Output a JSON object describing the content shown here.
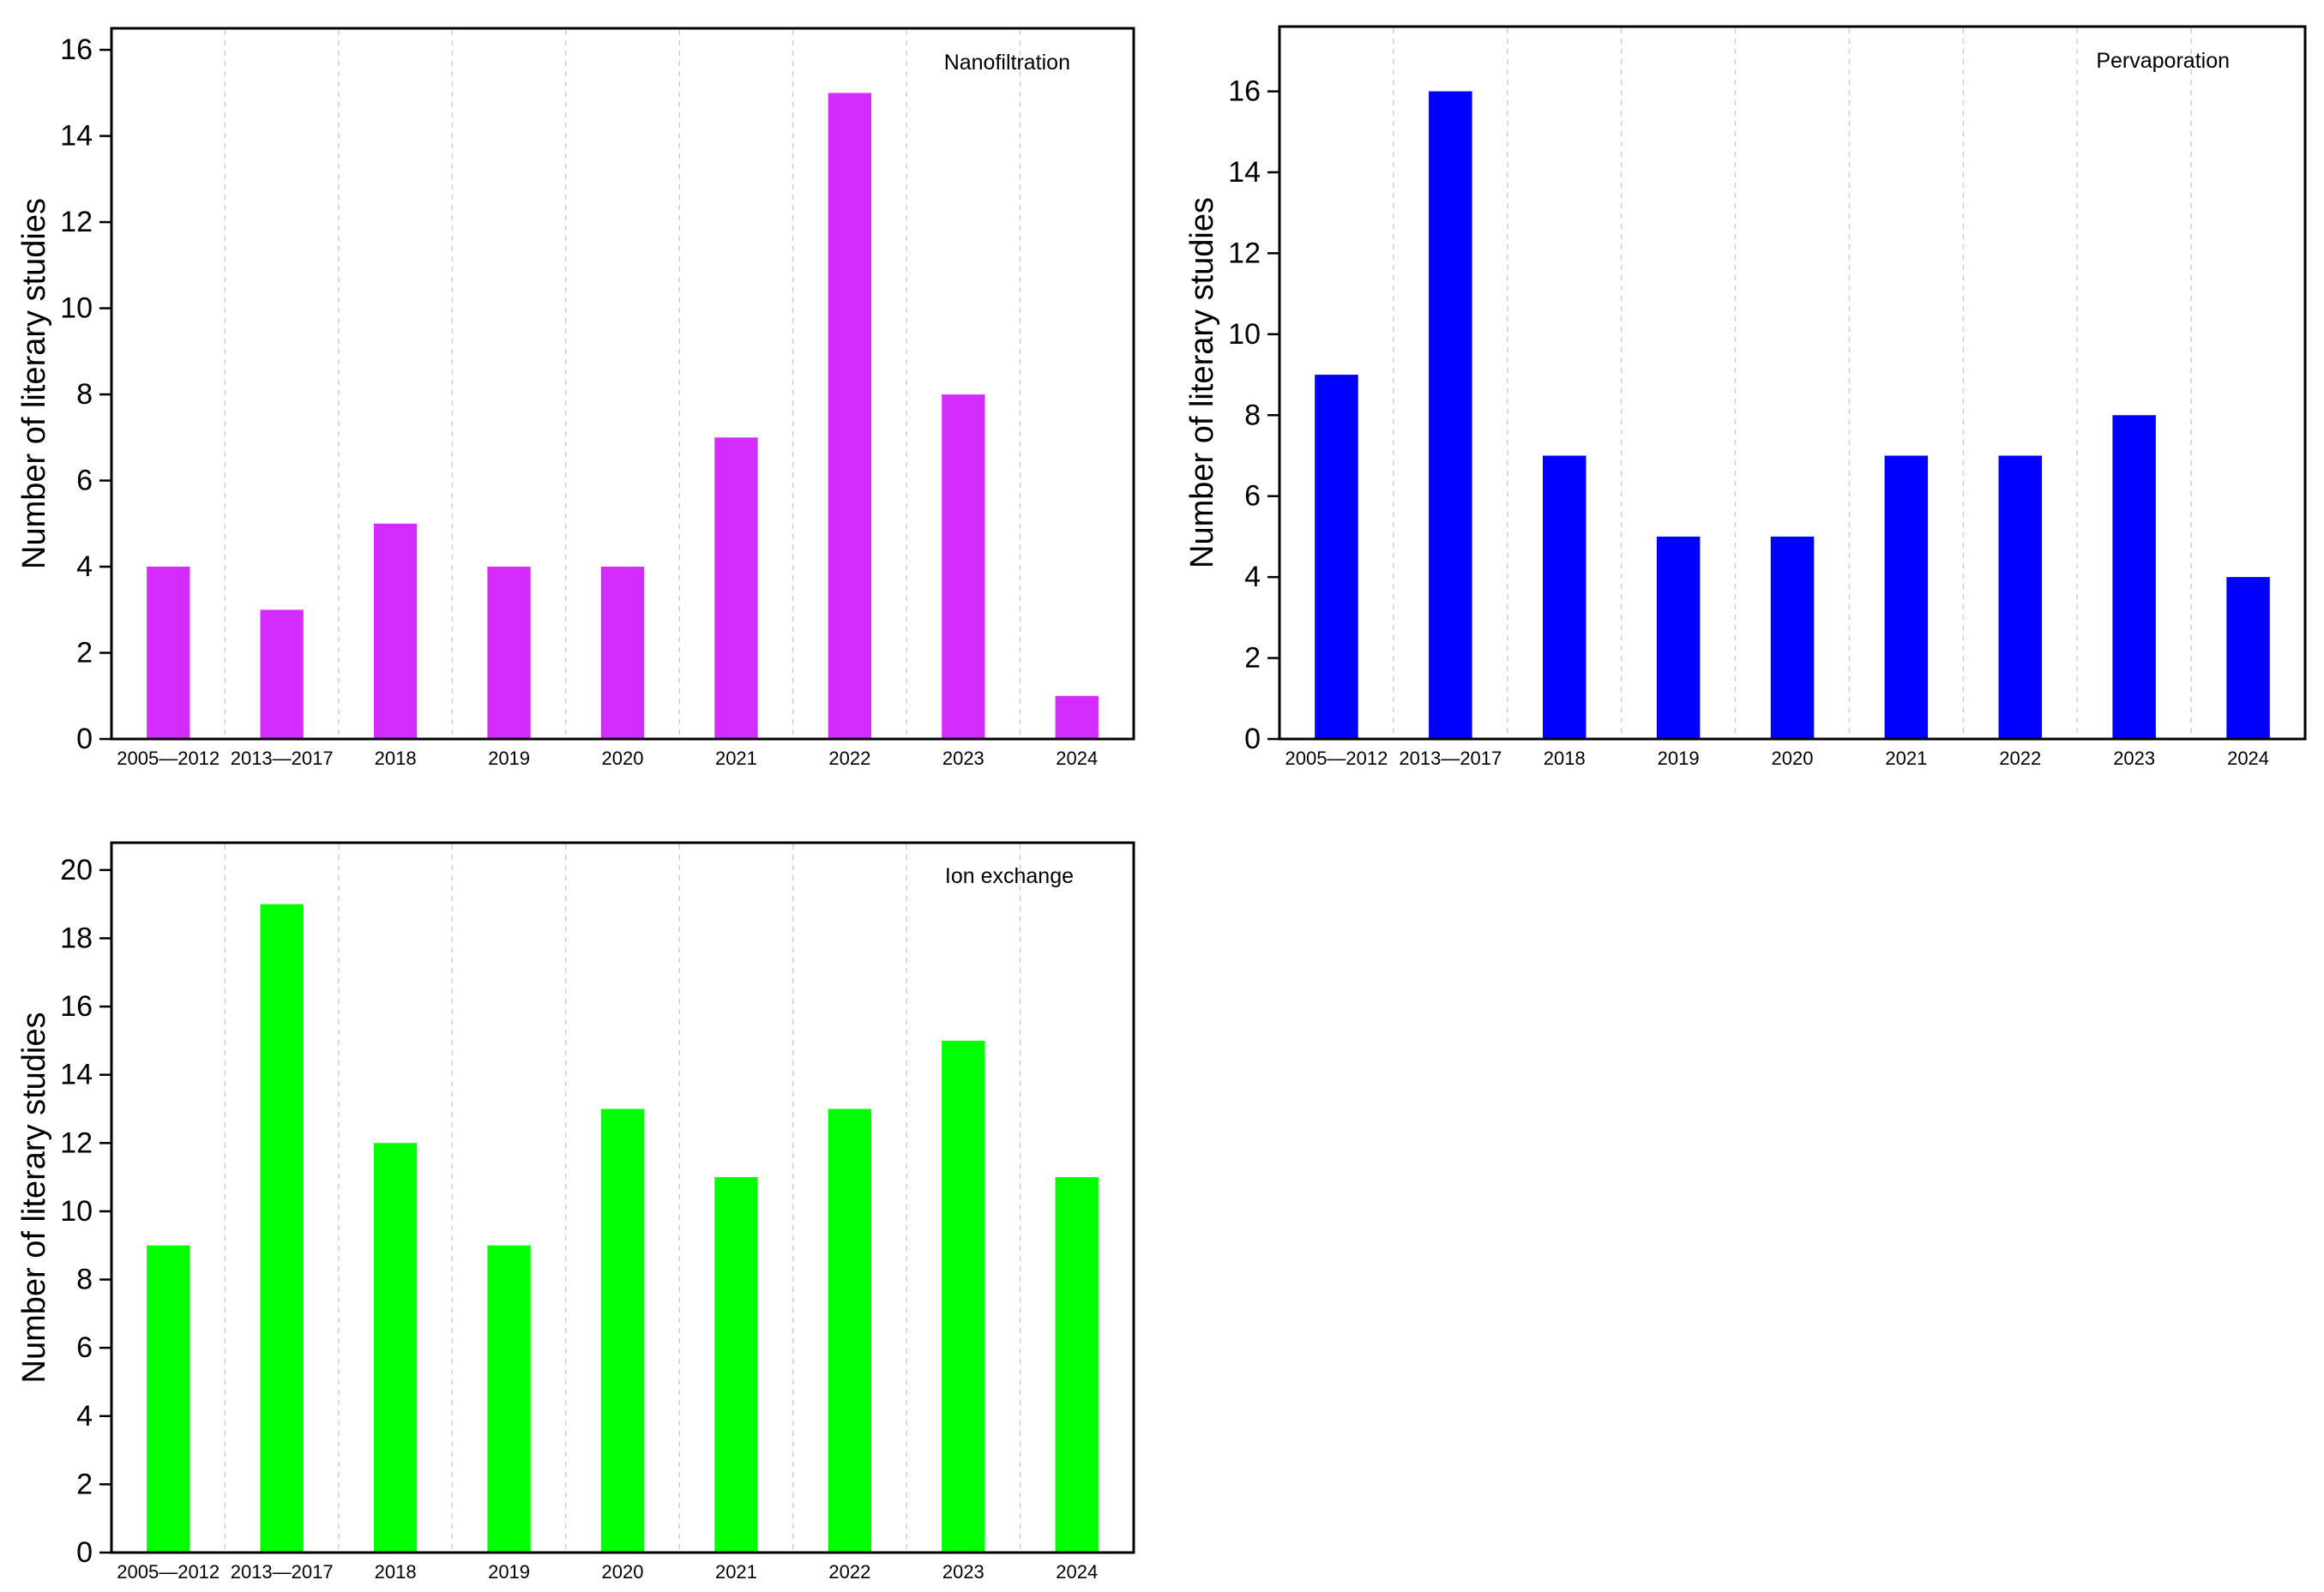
{
  "chart_data": [
    {
      "type": "bar",
      "title": "Nanofiltration",
      "ylabel": "Number of literary studies",
      "xlabel": "",
      "ylim": [
        0,
        16.5
      ],
      "yticks": [
        0,
        2,
        4,
        6,
        8,
        10,
        12,
        14,
        16
      ],
      "categories": [
        "2005—2012",
        "2013—2017",
        "2018",
        "2019",
        "2020",
        "2021",
        "2022",
        "2023",
        "2024"
      ],
      "values": [
        4,
        3,
        5,
        4,
        4,
        7,
        15,
        8,
        1
      ],
      "color": "#d42cff",
      "grid": "vertical-dashed",
      "legend": "top-right"
    },
    {
      "type": "bar",
      "title": "Pervaporation",
      "ylabel": "Number of literary studies",
      "xlabel": "",
      "ylim": [
        0,
        17.6
      ],
      "yticks": [
        0,
        2,
        4,
        6,
        8,
        10,
        12,
        14,
        16
      ],
      "categories": [
        "2005—2012",
        "2013—2017",
        "2018",
        "2019",
        "2020",
        "2021",
        "2022",
        "2023",
        "2024"
      ],
      "values": [
        9,
        16,
        7,
        5,
        5,
        7,
        7,
        8,
        4
      ],
      "color": "#0000ff",
      "grid": "vertical-dashed",
      "legend": "top-right"
    },
    {
      "type": "bar",
      "title": "Ion exchange",
      "ylabel": "Number of literary studies",
      "xlabel": "",
      "ylim": [
        0,
        20.8
      ],
      "yticks": [
        0,
        2,
        4,
        6,
        8,
        10,
        12,
        14,
        16,
        18,
        20
      ],
      "categories": [
        "2005—2012",
        "2013—2017",
        "2018",
        "2019",
        "2020",
        "2021",
        "2022",
        "2023",
        "2024"
      ],
      "values": [
        9,
        19,
        12,
        9,
        13,
        11,
        13,
        15,
        11
      ],
      "color": "#00ff00",
      "grid": "vertical-dashed",
      "legend": "top-right"
    }
  ]
}
